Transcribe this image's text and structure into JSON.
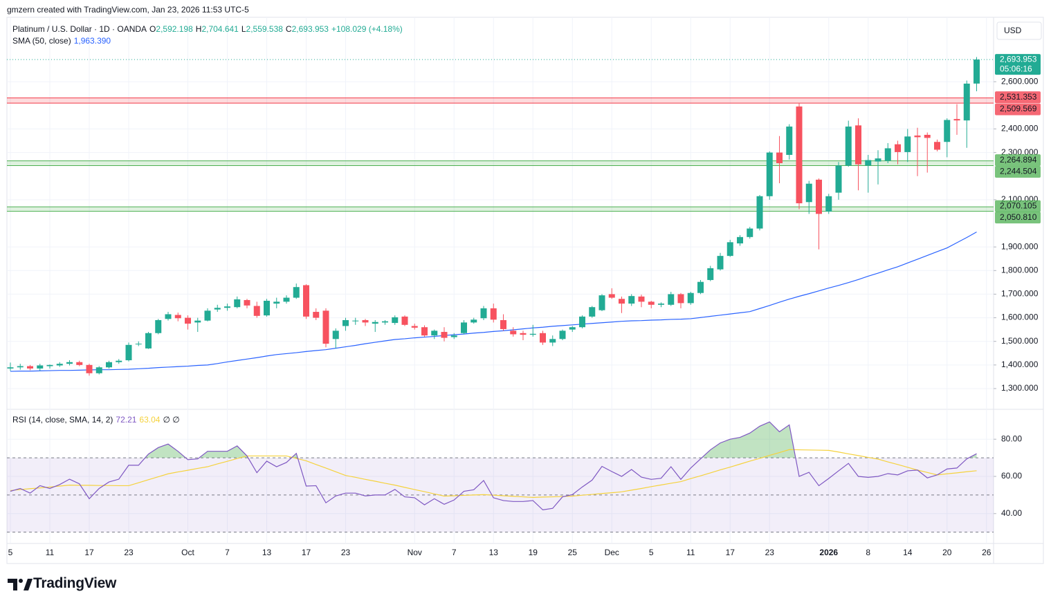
{
  "header": {
    "watermark": "gmzern created with TradingView.com, Jan 23, 2026 11:53 UTC-5",
    "logo": "TradingView"
  },
  "chart_data": [
    {
      "type": "candlestick",
      "title": "Platinum / U.S. Dollar · 1D · OANDA",
      "legend_values": [
        {
          "label": "O",
          "value": "2,592.198"
        },
        {
          "label": "H",
          "value": "2,704.641"
        },
        {
          "label": "L",
          "value": "2,559.538"
        },
        {
          "label": "C",
          "value": "2,693.953"
        }
      ],
      "change": "+108.029 (+4.18%)",
      "currency": "USD",
      "up_color": "#22ab94",
      "down_color": "#f7525f",
      "categories": [
        "5",
        null,
        null,
        null,
        "11",
        null,
        null,
        null,
        "17",
        null,
        null,
        null,
        "23",
        null,
        null,
        null,
        null,
        null,
        "Oct",
        null,
        null,
        null,
        "7",
        null,
        null,
        null,
        "13",
        null,
        null,
        null,
        "17",
        null,
        null,
        null,
        "23",
        null,
        null,
        null,
        null,
        null,
        null,
        "Nov",
        null,
        null,
        null,
        "7",
        null,
        null,
        null,
        "13",
        null,
        null,
        null,
        "19",
        null,
        null,
        null,
        "25",
        null,
        null,
        null,
        "Dec",
        null,
        null,
        null,
        "5",
        null,
        null,
        null,
        "11",
        null,
        null,
        null,
        "17",
        null,
        null,
        null,
        "23",
        null,
        null,
        null,
        null,
        null,
        "2026",
        null,
        null,
        null,
        "8",
        null,
        null,
        null,
        "14",
        null,
        null,
        null,
        "20",
        null,
        null,
        null,
        "26"
      ],
      "open": [
        1385,
        1390,
        1395,
        1385,
        1395,
        1398,
        1405,
        1412,
        1400,
        1365,
        1390,
        1412,
        1420,
        1488,
        1470,
        1535,
        1595,
        1612,
        1600,
        1580,
        1588,
        1635,
        1642,
        1645,
        1675,
        1650,
        1610,
        1660,
        1668,
        1685,
        1738,
        1625,
        1630,
        1510,
        1565,
        1585,
        1590,
        1575,
        1580,
        1578,
        1605,
        1565,
        1560,
        1525,
        1540,
        1518,
        1535,
        1580,
        1598,
        1640,
        1590,
        1545,
        1535,
        1528,
        1535,
        1495,
        1510,
        1550,
        1560,
        1605,
        1632,
        1700,
        1680,
        1660,
        1690,
        1668,
        1655,
        1655,
        1700,
        1662,
        1705,
        1760,
        1805,
        1862,
        1915,
        1942,
        1978,
        2115,
        2300,
        2290,
        2495,
        2090,
        2185,
        2050,
        2130,
        2245,
        2415,
        2245,
        2262,
        2265,
        2335,
        2302,
        2372,
        2375,
        2345,
        2345,
        2442,
        2436,
        2592.198,
        null
      ],
      "high": [
        1410,
        1405,
        1400,
        1405,
        1402,
        1412,
        1420,
        1418,
        1405,
        1395,
        1418,
        1425,
        1495,
        1500,
        1540,
        1595,
        1625,
        1622,
        1610,
        1600,
        1640,
        1655,
        1660,
        1690,
        1680,
        1668,
        1680,
        1685,
        1695,
        1745,
        1742,
        1640,
        1640,
        1555,
        1600,
        1600,
        1595,
        1590,
        1590,
        1610,
        1610,
        1575,
        1568,
        1550,
        1560,
        1535,
        1590,
        1600,
        1650,
        1660,
        1615,
        1560,
        1545,
        1570,
        1545,
        1525,
        1550,
        1565,
        1610,
        1650,
        1700,
        1725,
        1690,
        1700,
        1698,
        1672,
        1665,
        1710,
        1705,
        1710,
        1760,
        1820,
        1875,
        1930,
        1950,
        1985,
        2120,
        2305,
        2370,
        2420,
        2510,
        2180,
        2190,
        2125,
        2260,
        2435,
        2445,
        2290,
        2310,
        2340,
        2350,
        2400,
        2405,
        2385,
        2355,
        2445,
        2505,
        2605,
        2704.641,
        null
      ],
      "low": [
        1375,
        1380,
        1378,
        1375,
        1385,
        1392,
        1398,
        1395,
        1355,
        1360,
        1385,
        1405,
        1415,
        1480,
        1468,
        1530,
        1588,
        1585,
        1550,
        1540,
        1585,
        1625,
        1630,
        1640,
        1640,
        1600,
        1605,
        1640,
        1660,
        1680,
        1595,
        1590,
        1475,
        1470,
        1545,
        1570,
        1565,
        1540,
        1570,
        1570,
        1565,
        1550,
        1520,
        1510,
        1500,
        1510,
        1530,
        1575,
        1590,
        1580,
        1545,
        1520,
        1505,
        1520,
        1485,
        1480,
        1505,
        1540,
        1555,
        1600,
        1628,
        1680,
        1620,
        1650,
        1645,
        1640,
        1645,
        1650,
        1640,
        1655,
        1700,
        1755,
        1800,
        1858,
        1905,
        1935,
        1970,
        2100,
        2170,
        2270,
        2060,
        2040,
        1890,
        2040,
        2100,
        2240,
        2140,
        2130,
        2165,
        2255,
        2250,
        2260,
        2200,
        2215,
        2305,
        2280,
        2375,
        2320,
        2559.538,
        null
      ],
      "close": [
        1390,
        1395,
        1385,
        1398,
        1400,
        1405,
        1412,
        1400,
        1365,
        1390,
        1412,
        1418,
        1485,
        1490,
        1535,
        1590,
        1615,
        1598,
        1575,
        1588,
        1630,
        1642,
        1648,
        1678,
        1652,
        1608,
        1672,
        1668,
        1685,
        1730,
        1605,
        1600,
        1490,
        1545,
        1590,
        1588,
        1580,
        1582,
        1585,
        1602,
        1570,
        1558,
        1525,
        1545,
        1515,
        1525,
        1580,
        1592,
        1640,
        1592,
        1552,
        1530,
        1528,
        1532,
        1495,
        1510,
        1545,
        1560,
        1605,
        1645,
        1695,
        1685,
        1660,
        1692,
        1668,
        1655,
        1660,
        1700,
        1662,
        1705,
        1752,
        1810,
        1862,
        1920,
        1942,
        1978,
        2115,
        2300,
        2255,
        2410,
        2085,
        2168,
        2040,
        2115,
        2245,
        2410,
        2250,
        2268,
        2275,
        2318,
        2302,
        2368,
        2365,
        2362,
        2312,
        2438,
        2436,
        2592,
        2693.953,
        null
      ],
      "ylim": [
        1215,
        2873
      ],
      "yticks": [
        {
          "value": 1300,
          "label": "1,300.000"
        },
        {
          "value": 1400,
          "label": "1,400.000"
        },
        {
          "value": 1500,
          "label": "1,500.000"
        },
        {
          "value": 1600,
          "label": "1,600.000"
        },
        {
          "value": 1700,
          "label": "1,700.000"
        },
        {
          "value": 1800,
          "label": "1,800.000"
        },
        {
          "value": 1900,
          "label": "1,900.000"
        },
        {
          "value": 2100,
          "label": "2,100.000"
        },
        {
          "value": 2300,
          "label": "2,300.000"
        },
        {
          "value": 2400,
          "label": "2,400.000"
        },
        {
          "value": 2600,
          "label": "2,600.000"
        }
      ],
      "grid": true,
      "last_price_label": "2,693.953",
      "countdown": "05:06:16",
      "zones": [
        {
          "high": {
            "value": 2531.353,
            "label": "2,531.353"
          },
          "low": {
            "value": 2509.569,
            "label": "2,509.569"
          },
          "color": "#f23645"
        },
        {
          "high": {
            "value": 2264.894,
            "label": "2,264.894"
          },
          "low": {
            "value": 2244.504,
            "label": "2,244.504"
          },
          "color": "#4caf50"
        },
        {
          "high": {
            "value": 2070.105,
            "label": "2,070.105"
          },
          "low": {
            "value": 2050.81,
            "label": "2,050.810"
          },
          "color": "#4caf50"
        }
      ],
      "overlays": [
        {
          "name": "SMA (50, close)",
          "value_label": "1,963.390",
          "color": "#2962ff",
          "values": [
            1373,
            1374,
            1374,
            1375,
            1376,
            1377,
            1377,
            1378,
            1379,
            1380,
            1380,
            1381,
            1382,
            1384,
            1386,
            1389,
            1391,
            1393,
            1395,
            1398,
            1400,
            1406,
            1413,
            1419,
            1425,
            1431,
            1438,
            1444,
            1448,
            1452,
            1457,
            1461,
            1465,
            1471,
            1477,
            1483,
            1490,
            1496,
            1502,
            1508,
            1511,
            1515,
            1518,
            1521,
            1525,
            1528,
            1531,
            1535,
            1538,
            1542,
            1545,
            1549,
            1553,
            1557,
            1560,
            1564,
            1567,
            1570,
            1573,
            1576,
            1579,
            1582,
            1585,
            1587,
            1588,
            1590,
            1591,
            1593,
            1594,
            1596,
            1601,
            1606,
            1611,
            1616,
            1621,
            1626,
            1639,
            1652,
            1666,
            1679,
            1691,
            1702,
            1714,
            1726,
            1737,
            1749,
            1762,
            1776,
            1789,
            1803,
            1816,
            1832,
            1848,
            1864,
            1880,
            1896,
            1918,
            1940,
            1963.39,
            null
          ]
        }
      ]
    },
    {
      "type": "line",
      "title": "RSI (14, close, SMA, 14, 2)",
      "legend_extra": "∅ ∅",
      "series": [
        {
          "color": "#7e57c2",
          "last_label": "72.21",
          "values": [
            52,
            53.5,
            51,
            55,
            53.5,
            55.6,
            58.5,
            56,
            48,
            53.5,
            57,
            58.5,
            66,
            66,
            72,
            75.5,
            77.4,
            73.5,
            69,
            69.4,
            73.5,
            73.5,
            73.5,
            76.4,
            71,
            62,
            68.2,
            65.2,
            67.5,
            72.4,
            54.8,
            55,
            45.8,
            49.5,
            51,
            51,
            49.5,
            50,
            50,
            53,
            49,
            48.5,
            44.7,
            48,
            45,
            47.3,
            52,
            52.8,
            57.8,
            48.5,
            47,
            46.5,
            46.5,
            47,
            42,
            42.8,
            49,
            50.2,
            54.3,
            58,
            65.4,
            62.6,
            60,
            63.7,
            59.6,
            58.4,
            59,
            65.2,
            58.4,
            64.5,
            69.4,
            74.3,
            78,
            80,
            81,
            83.3,
            87,
            89.3,
            84,
            87.7,
            60,
            62.2,
            55,
            58.9,
            63,
            67,
            60,
            59.5,
            60,
            61.5,
            60.8,
            63,
            63.4,
            59.2,
            60.8,
            64,
            64.5,
            69.4,
            72.21,
            null
          ]
        },
        {
          "color": "#f5d23c",
          "last_label": "63.04",
          "values": [
            52.4,
            52.9,
            53.4,
            53.8,
            54.3,
            54.8,
            55.3,
            55.2,
            55.2,
            55.1,
            55.1,
            55.0,
            55.0,
            56.6,
            58.2,
            59.8,
            61.4,
            62.4,
            63.3,
            64.3,
            65.2,
            66.7,
            68.1,
            69.6,
            71,
            71,
            71,
            71,
            71,
            69.7,
            68.4,
            66.4,
            64.5,
            62.5,
            60.5,
            59.5,
            58.4,
            57.4,
            56.3,
            55.3,
            54.1,
            52.9,
            51.8,
            50.6,
            49.4,
            49.6,
            49.8,
            50,
            50.2,
            49.9,
            49.6,
            49.3,
            49,
            48.7,
            48.9,
            49,
            49.2,
            49.4,
            49.9,
            50.3,
            50.8,
            51.2,
            51.7,
            52.6,
            53.5,
            54.5,
            55.4,
            56.3,
            57.2,
            58.8,
            60.3,
            61.9,
            63.5,
            65,
            66.6,
            68.2,
            69.7,
            71.3,
            72.8,
            74.4,
            74.3,
            74.2,
            74.1,
            74,
            73.1,
            72.1,
            71.2,
            70.2,
            69.3,
            67.8,
            66.4,
            64.9,
            63.4,
            62.1,
            60.8,
            61.4,
            61.9,
            62.5,
            63.04,
            null
          ]
        }
      ],
      "ylim": [
        24.3,
        95.7
      ],
      "yticks": [
        {
          "value": 40,
          "label": "40.00"
        },
        {
          "value": 60,
          "label": "60.00"
        },
        {
          "value": 80,
          "label": "80.00"
        }
      ],
      "band": [
        30,
        70
      ],
      "midline": 50,
      "band_color": "#7e57c2",
      "overbought_fill": "#4caf50"
    }
  ]
}
